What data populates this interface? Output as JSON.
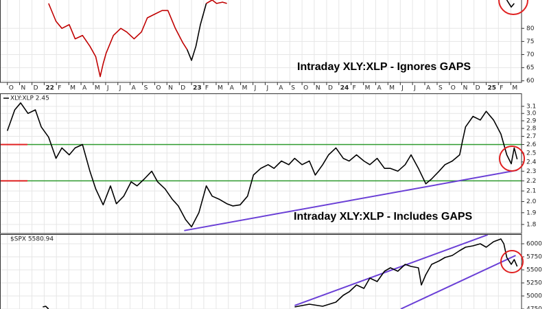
{
  "chart_data": [
    {
      "type": "line",
      "annotation": "Intraday XLY:XLP - Ignores GAPS",
      "grid": true,
      "xlim": [
        2021.7,
        2025.24
      ],
      "ylim": [
        59.4,
        90.8
      ],
      "yticks": [
        60,
        65,
        70,
        75,
        80
      ],
      "xticks": [
        {
          "value": 2021.75,
          "label": "O"
        },
        {
          "value": 2021.833,
          "label": "N"
        },
        {
          "value": 2021.917,
          "label": "D"
        },
        {
          "value": 2022,
          "label": "22"
        },
        {
          "value": 2022.083,
          "label": "F"
        },
        {
          "value": 2022.167,
          "label": "M"
        },
        {
          "value": 2022.25,
          "label": "A"
        },
        {
          "value": 2022.333,
          "label": "M"
        },
        {
          "value": 2022.417,
          "label": "J"
        },
        {
          "value": 2022.5,
          "label": "J"
        },
        {
          "value": 2022.583,
          "label": "A"
        },
        {
          "value": 2022.667,
          "label": "S"
        },
        {
          "value": 2022.75,
          "label": "O"
        },
        {
          "value": 2022.833,
          "label": "N"
        },
        {
          "value": 2022.917,
          "label": "D"
        },
        {
          "value": 2023,
          "label": "23"
        },
        {
          "value": 2023.083,
          "label": "F"
        },
        {
          "value": 2023.167,
          "label": "M"
        },
        {
          "value": 2023.25,
          "label": "A"
        },
        {
          "value": 2023.333,
          "label": "M"
        },
        {
          "value": 2023.417,
          "label": "J"
        },
        {
          "value": 2023.5,
          "label": "J"
        },
        {
          "value": 2023.583,
          "label": "A"
        },
        {
          "value": 2023.667,
          "label": "S"
        },
        {
          "value": 2023.75,
          "label": "O"
        },
        {
          "value": 2023.833,
          "label": "N"
        },
        {
          "value": 2023.917,
          "label": "D"
        },
        {
          "value": 2024,
          "label": "24"
        },
        {
          "value": 2024.083,
          "label": "F"
        },
        {
          "value": 2024.167,
          "label": "M"
        },
        {
          "value": 2024.25,
          "label": "A"
        },
        {
          "value": 2024.333,
          "label": "M"
        },
        {
          "value": 2024.417,
          "label": "J"
        },
        {
          "value": 2024.5,
          "label": "J"
        },
        {
          "value": 2024.583,
          "label": "A"
        },
        {
          "value": 2024.667,
          "label": "S"
        },
        {
          "value": 2024.75,
          "label": "O"
        },
        {
          "value": 2024.833,
          "label": "N"
        },
        {
          "value": 2024.917,
          "label": "D"
        },
        {
          "value": 2025,
          "label": "25"
        },
        {
          "value": 2025.083,
          "label": "F"
        },
        {
          "value": 2025.167,
          "label": "M"
        }
      ],
      "series": [
        {
          "color": "#c00000",
          "x": [
            2022.03,
            2022.08,
            2022.12,
            2022.17,
            2022.21,
            2022.26,
            2022.31,
            2022.35,
            2022.38,
            2022.4,
            2022.42,
            2022.47,
            2022.52,
            2022.56,
            2022.61,
            2022.66,
            2022.7,
            2022.75,
            2022.8,
            2022.84,
            2022.89,
            2022.94,
            2022.97,
            null,
            2023.1,
            2023.14,
            2023.17,
            2023.21,
            2023.24
          ],
          "values": [
            89.5,
            82.7,
            80,
            81.4,
            76,
            77.3,
            73.2,
            69.2,
            61.6,
            66.5,
            70.5,
            77.3,
            80,
            78.6,
            76,
            78.6,
            84,
            85.4,
            86.8,
            86.8,
            80,
            74.6,
            71.9,
            null,
            89.5,
            90.8,
            89.5,
            90,
            89.5
          ]
        },
        {
          "color": "#000000",
          "x": [
            2022.97,
            2023.0,
            2023.03,
            2023.06,
            2023.1,
            null,
            2025.14,
            2025.17,
            2025.19
          ],
          "values": [
            71.9,
            67.8,
            73.2,
            81.4,
            89.5,
            null,
            90.8,
            88.1,
            89.5
          ]
        }
      ]
    },
    {
      "type": "line",
      "label": "XLY:XLP 2.45",
      "annotation": "Intraday XLY:XLP - Includes GAPS",
      "grid": true,
      "log_y": true,
      "xlim": [
        2021.7,
        2025.24
      ],
      "ylim": [
        1.727,
        3.29
      ],
      "yticks": [
        1.8,
        1.9,
        {
          "value": 2,
          "label": "2.0"
        },
        2.1,
        2.2,
        2.3,
        2.4,
        2.5,
        2.6,
        2.7,
        2.8,
        2.9,
        {
          "value": 3,
          "label": "3.0"
        },
        3.1
      ],
      "hlines": {
        "values": [
          2.6,
          2.2
        ],
        "color": "#2e9a2e",
        "stub_color": "#e02020"
      },
      "trendlines": [
        {
          "color": "#6a3fd6",
          "x": [
            2022.95,
            2025.21
          ],
          "values": [
            1.75,
            2.31
          ]
        }
      ],
      "series": [
        {
          "color": "#000000",
          "x": [
            2021.75,
            2021.8,
            2021.84,
            2021.89,
            2021.94,
            2021.98,
            2022.03,
            2022.08,
            2022.12,
            2022.17,
            2022.21,
            2022.26,
            2022.31,
            2022.35,
            2022.4,
            2022.45,
            2022.49,
            2022.54,
            2022.59,
            2022.63,
            2022.68,
            2022.73,
            2022.77,
            2022.82,
            2022.87,
            2022.91,
            2022.96,
            2023.0,
            2023.05,
            2023.1,
            2023.14,
            2023.19,
            2023.24,
            2023.28,
            2023.33,
            2023.38,
            2023.42,
            2023.47,
            2023.52,
            2023.56,
            2023.61,
            2023.66,
            2023.7,
            2023.75,
            2023.8,
            2023.84,
            2023.89,
            2023.93,
            2023.98,
            2024.03,
            2024.07,
            2024.12,
            2024.17,
            2024.21,
            2024.26,
            2024.31,
            2024.35,
            2024.4,
            2024.45,
            2024.49,
            2024.54,
            2024.59,
            2024.63,
            2024.68,
            2024.72,
            2024.77,
            2024.82,
            2024.84,
            2024.86,
            2024.91,
            2024.96,
            2025.0,
            2025.05,
            2025.1,
            2025.14,
            2025.17,
            2025.19,
            2025.21
          ],
          "values": [
            2.77,
            3.05,
            3.15,
            3.0,
            3.05,
            2.82,
            2.69,
            2.44,
            2.56,
            2.48,
            2.56,
            2.6,
            2.3,
            2.12,
            1.97,
            2.15,
            1.98,
            2.05,
            2.19,
            2.15,
            2.22,
            2.3,
            2.19,
            2.12,
            2.02,
            1.96,
            1.84,
            1.78,
            1.9,
            2.15,
            2.05,
            2.02,
            1.98,
            1.96,
            1.97,
            2.05,
            2.26,
            2.33,
            2.37,
            2.33,
            2.41,
            2.37,
            2.44,
            2.37,
            2.41,
            2.26,
            2.37,
            2.48,
            2.56,
            2.44,
            2.41,
            2.48,
            2.41,
            2.37,
            2.44,
            2.33,
            2.33,
            2.3,
            2.37,
            2.48,
            2.33,
            2.17,
            2.22,
            2.3,
            2.37,
            2.41,
            2.48,
            2.65,
            2.82,
            2.96,
            2.91,
            3.03,
            2.91,
            2.73,
            2.48,
            2.38,
            2.56,
            2.43
          ]
        }
      ]
    },
    {
      "type": "line",
      "label": "$SPX 5580.94",
      "grid": true,
      "xlim": [
        2021.7,
        2025.24
      ],
      "ylim": [
        4750,
        6184
      ],
      "yticks": [
        4750,
        5000,
        5250,
        5500,
        5750,
        6000
      ],
      "trendlines": [
        {
          "color": "#6a3fd6",
          "x": [
            2023.7,
            2025.01
          ],
          "values": [
            4816,
            6171
          ]
        },
        {
          "color": "#6a3fd6",
          "x": [
            2024.42,
            2025.2
          ],
          "values": [
            4750,
            5776
          ]
        }
      ],
      "series": [
        {
          "color": "#000000",
          "x": [
            2021.99,
            2022.01,
            2022.03,
            null,
            2023.7,
            2023.8,
            2023.89,
            2023.98,
            2024.03,
            2024.07,
            2024.12,
            2024.17,
            2024.21,
            2024.26,
            2024.31,
            2024.35,
            2024.4,
            2024.45,
            2024.49,
            2024.54,
            2024.56,
            2024.59,
            2024.63,
            2024.68,
            2024.72,
            2024.77,
            2024.82,
            2024.86,
            2024.91,
            2024.96,
            2025.0,
            2025.05,
            2025.1,
            2025.12,
            2025.14,
            2025.17,
            2025.19,
            2025.21
          ],
          "values": [
            4789,
            4803,
            4750,
            null,
            4789,
            4842,
            4803,
            4881,
            5013,
            5079,
            5210,
            5145,
            5342,
            5276,
            5474,
            5539,
            5474,
            5605,
            5566,
            5539,
            5210,
            5408,
            5605,
            5671,
            5737,
            5776,
            5868,
            5934,
            5961,
            6000,
            5934,
            6039,
            6092,
            6000,
            5737,
            5605,
            5697,
            5566
          ]
        }
      ]
    }
  ]
}
